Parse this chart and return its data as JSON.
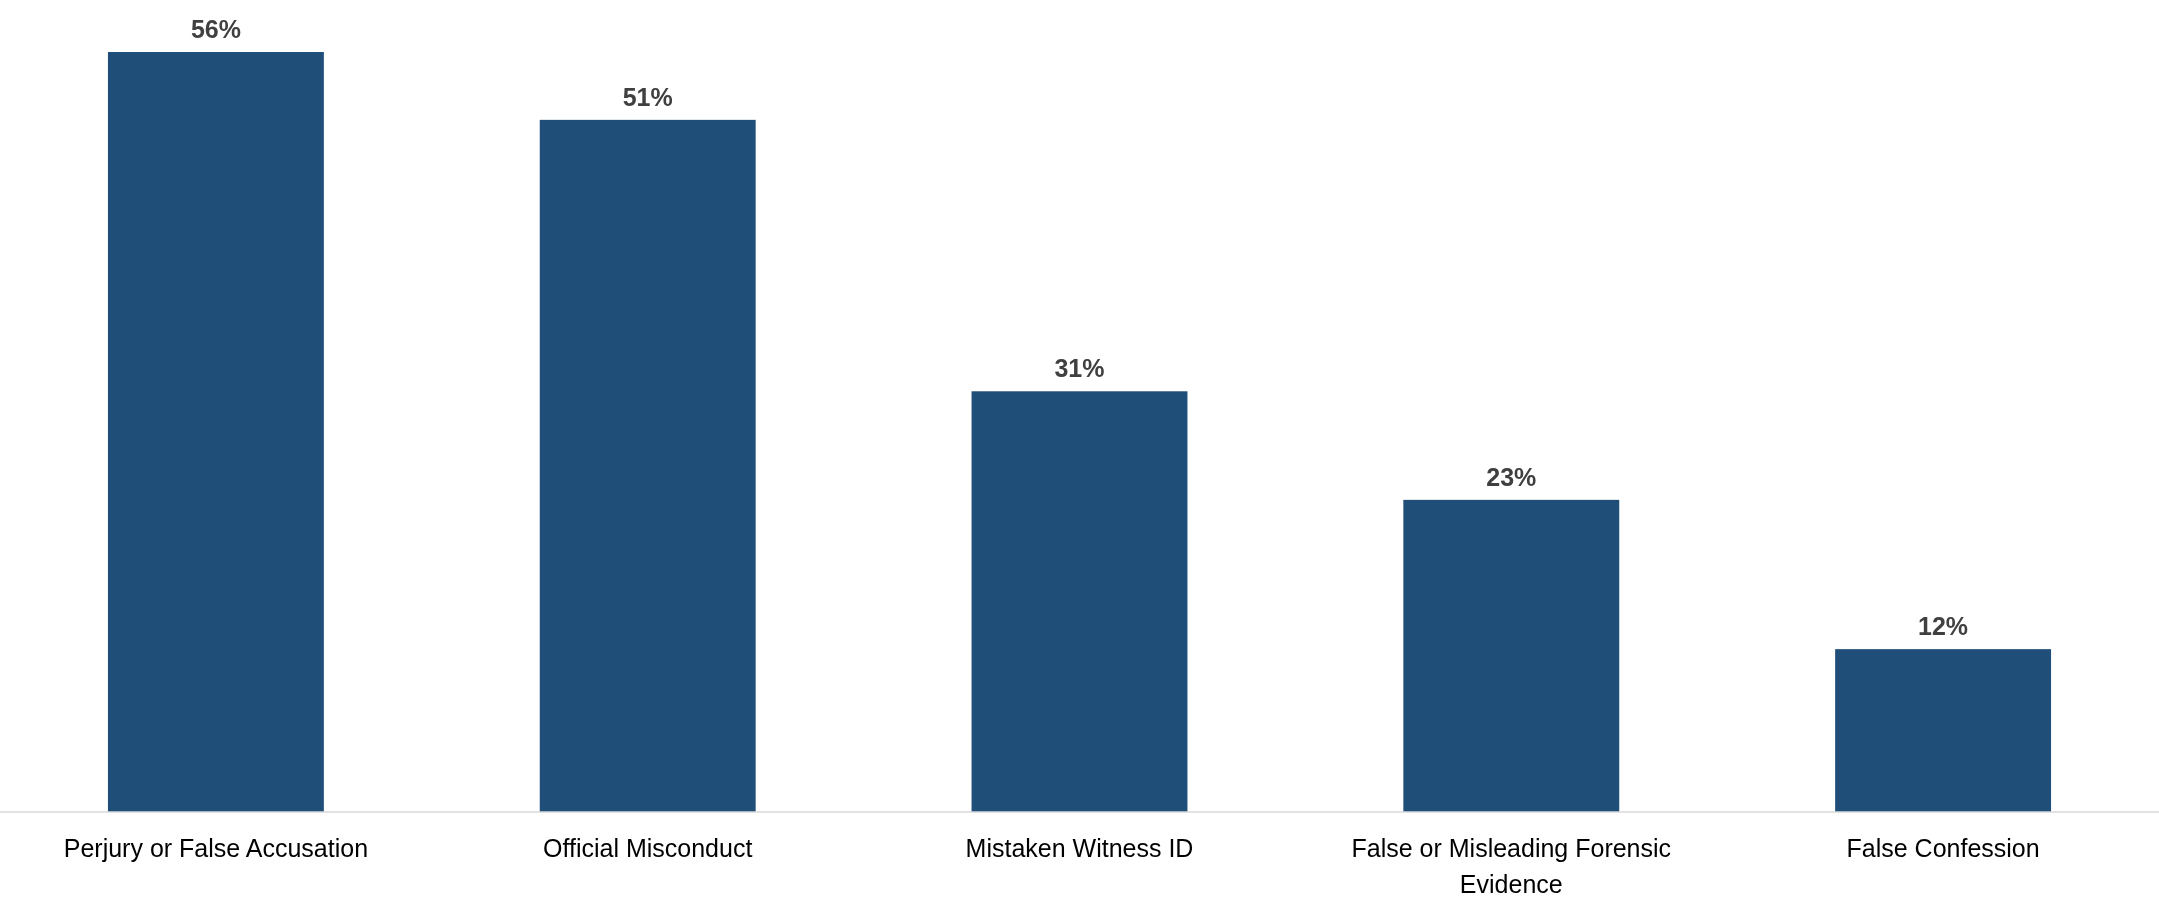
{
  "chart_data": {
    "type": "bar",
    "categories": [
      "Perjury or False Accusation",
      "Official Misconduct",
      "Mistaken Witness ID",
      "False or Misleading Forensic Evidence",
      "False Confession"
    ],
    "values": [
      56,
      51,
      31,
      23,
      12
    ],
    "color": "#1f4e79",
    "value_labels": [
      "56%",
      "51%",
      "31%",
      "23%",
      "12%"
    ]
  }
}
